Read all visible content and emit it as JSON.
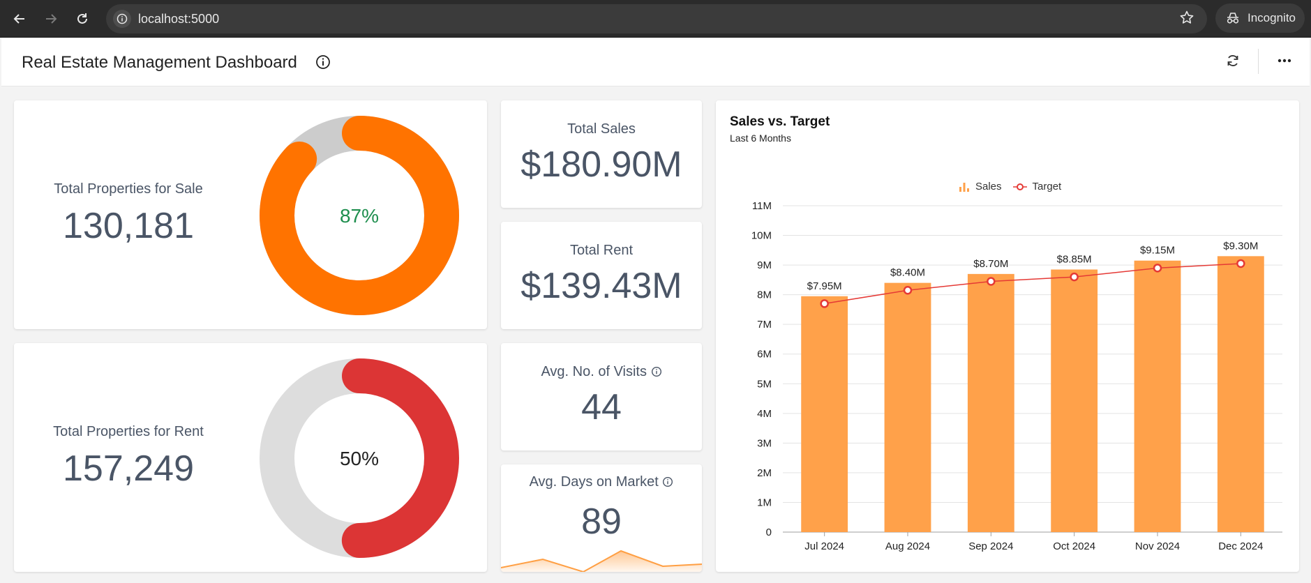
{
  "browser": {
    "url": "localhost:5000",
    "incognito_label": "Incognito"
  },
  "header": {
    "title": "Real Estate Management Dashboard"
  },
  "cards": {
    "sale": {
      "label": "Total Properties for Sale",
      "value": "130,181",
      "percent_label": "87%",
      "percent": 87,
      "color": "#ff7300",
      "text_color": "#1e8e4e"
    },
    "rent": {
      "label": "Total Properties for Rent",
      "value": "157,249",
      "percent_label": "50%",
      "percent": 50,
      "color": "#dc3535",
      "text_color": "#222222"
    },
    "total_sales": {
      "label": "Total Sales",
      "value": "$180.90M"
    },
    "total_rent": {
      "label": "Total Rent",
      "value": "$139.43M"
    },
    "avg_visits": {
      "label": "Avg. No. of Visits",
      "value": "44"
    },
    "avg_days": {
      "label": "Avg. Days on Market",
      "value": "89"
    }
  },
  "chart_data": {
    "type": "bar",
    "title": "Sales vs. Target",
    "subtitle": "Last 6 Months",
    "categories": [
      "Jul 2024",
      "Aug 2024",
      "Sep 2024",
      "Oct 2024",
      "Nov 2024",
      "Dec 2024"
    ],
    "series": [
      {
        "name": "Sales",
        "type": "bar",
        "values": [
          7.95,
          8.4,
          8.7,
          8.85,
          9.15,
          9.3
        ],
        "labels": [
          "$7.95M",
          "$8.40M",
          "$8.70M",
          "$8.85M",
          "$9.15M",
          "$9.30M"
        ],
        "color": "#ffa14a"
      },
      {
        "name": "Target",
        "type": "line",
        "values": [
          7.7,
          8.15,
          8.45,
          8.6,
          8.9,
          9.05
        ],
        "color": "#e53935"
      }
    ],
    "yticks": [
      "0",
      "1M",
      "2M",
      "3M",
      "4M",
      "5M",
      "6M",
      "7M",
      "8M",
      "9M",
      "10M",
      "11M"
    ],
    "ylim": [
      0,
      11
    ],
    "ylabel": "",
    "xlabel": "",
    "grid": true,
    "legend": "top-center"
  },
  "colors": {
    "accent": "#ff7300",
    "bar": "#ffa14a",
    "target": "#e53935",
    "text": "#4a5566"
  }
}
